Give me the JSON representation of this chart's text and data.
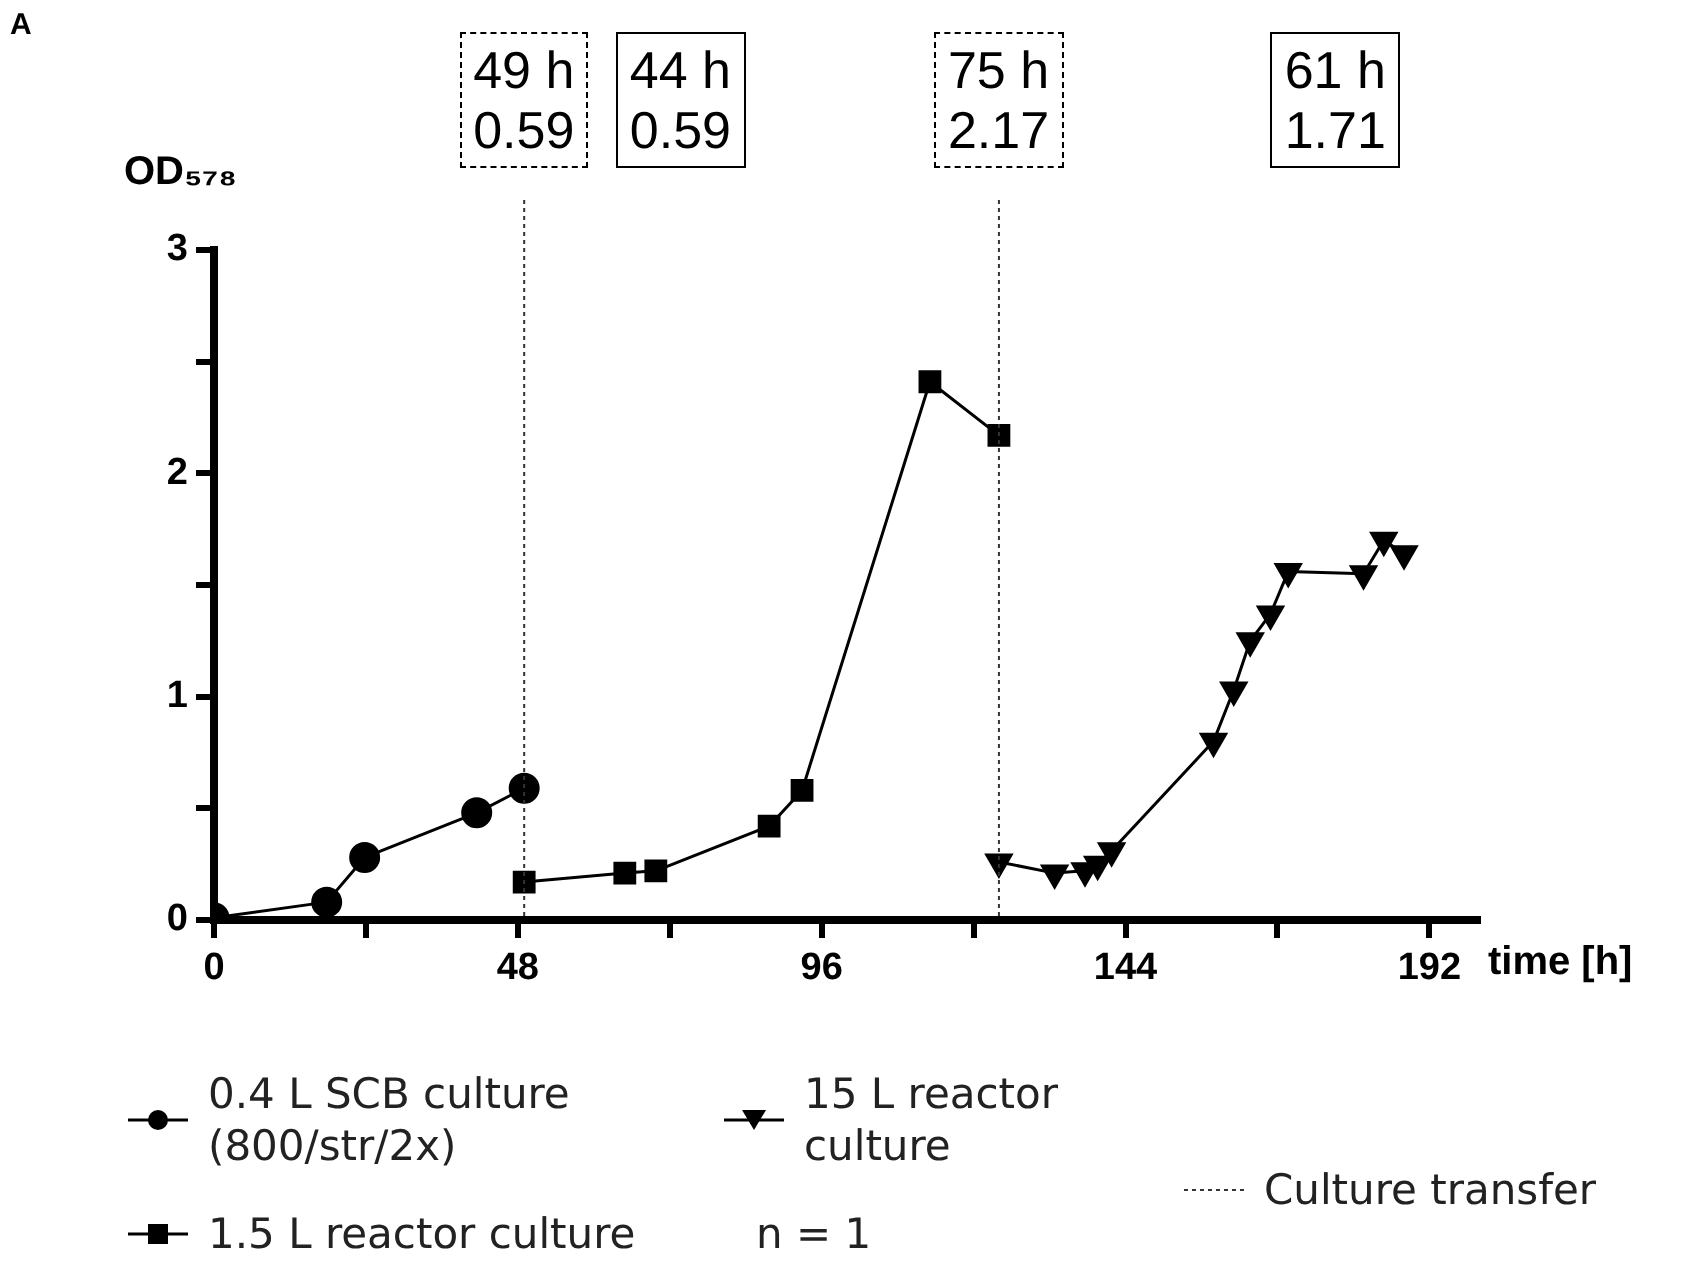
{
  "chart_data": {
    "type": "line",
    "title": "A",
    "ylabel": "OD₅₇₈",
    "xlabel": "time [h]",
    "xlim": [
      0,
      200
    ],
    "xticks": [
      0,
      {
        "value": 24,
        "label": null
      },
      48,
      {
        "value": 72,
        "label": null
      },
      96,
      {
        "value": 120,
        "label": null
      },
      144,
      {
        "value": 168,
        "label": null
      },
      192
    ],
    "ylim": [
      0,
      3
    ],
    "yticks": [
      0,
      {
        "value": 0.5,
        "label": null
      },
      1,
      {
        "value": 1.5,
        "label": null
      },
      2,
      {
        "value": 2.5,
        "label": null
      },
      3
    ],
    "grid": false,
    "legend": "bottom",
    "line_style": "solid",
    "series": [
      {
        "name": "0.4 L SCB culture (800/str/2x)",
        "color": "#000000",
        "marker": "circle",
        "x": [
          0,
          17.8,
          23.8,
          41.5,
          49
        ],
        "values": [
          0.01,
          0.08,
          0.28,
          0.48,
          0.59
        ]
      },
      {
        "name": "1.5 L reactor culture",
        "color": "#000000",
        "marker": "square",
        "x": [
          49,
          64.9,
          69.8,
          87.7,
          92.9,
          113.1,
          124
        ],
        "values": [
          0.17,
          0.21,
          0.22,
          0.42,
          0.58,
          2.41,
          2.17
        ]
      },
      {
        "name": "15 L reactor culture",
        "color": "#000000",
        "marker": "triangle",
        "x": [
          124,
          132.8,
          137.6,
          139.6,
          141.8,
          157.9,
          161.1,
          163.7,
          166.9,
          169.7,
          181.6,
          184.8,
          188
        ],
        "values": [
          0.26,
          0.21,
          0.22,
          0.25,
          0.31,
          0.8,
          1.03,
          1.25,
          1.37,
          1.56,
          1.55,
          1.7,
          1.64
        ]
      }
    ],
    "ref_lines": [
      {
        "axis": "x",
        "value": 49,
        "label": "Culture transfer",
        "line_style": "dotted"
      },
      {
        "axis": "x",
        "value": 124,
        "line_style": "dotted"
      }
    ],
    "annotations": [
      "49 h\n0.59",
      "44 h\n0.59",
      "75 h\n2.17",
      "61 h\n1.71",
      "n = 1"
    ]
  }
}
